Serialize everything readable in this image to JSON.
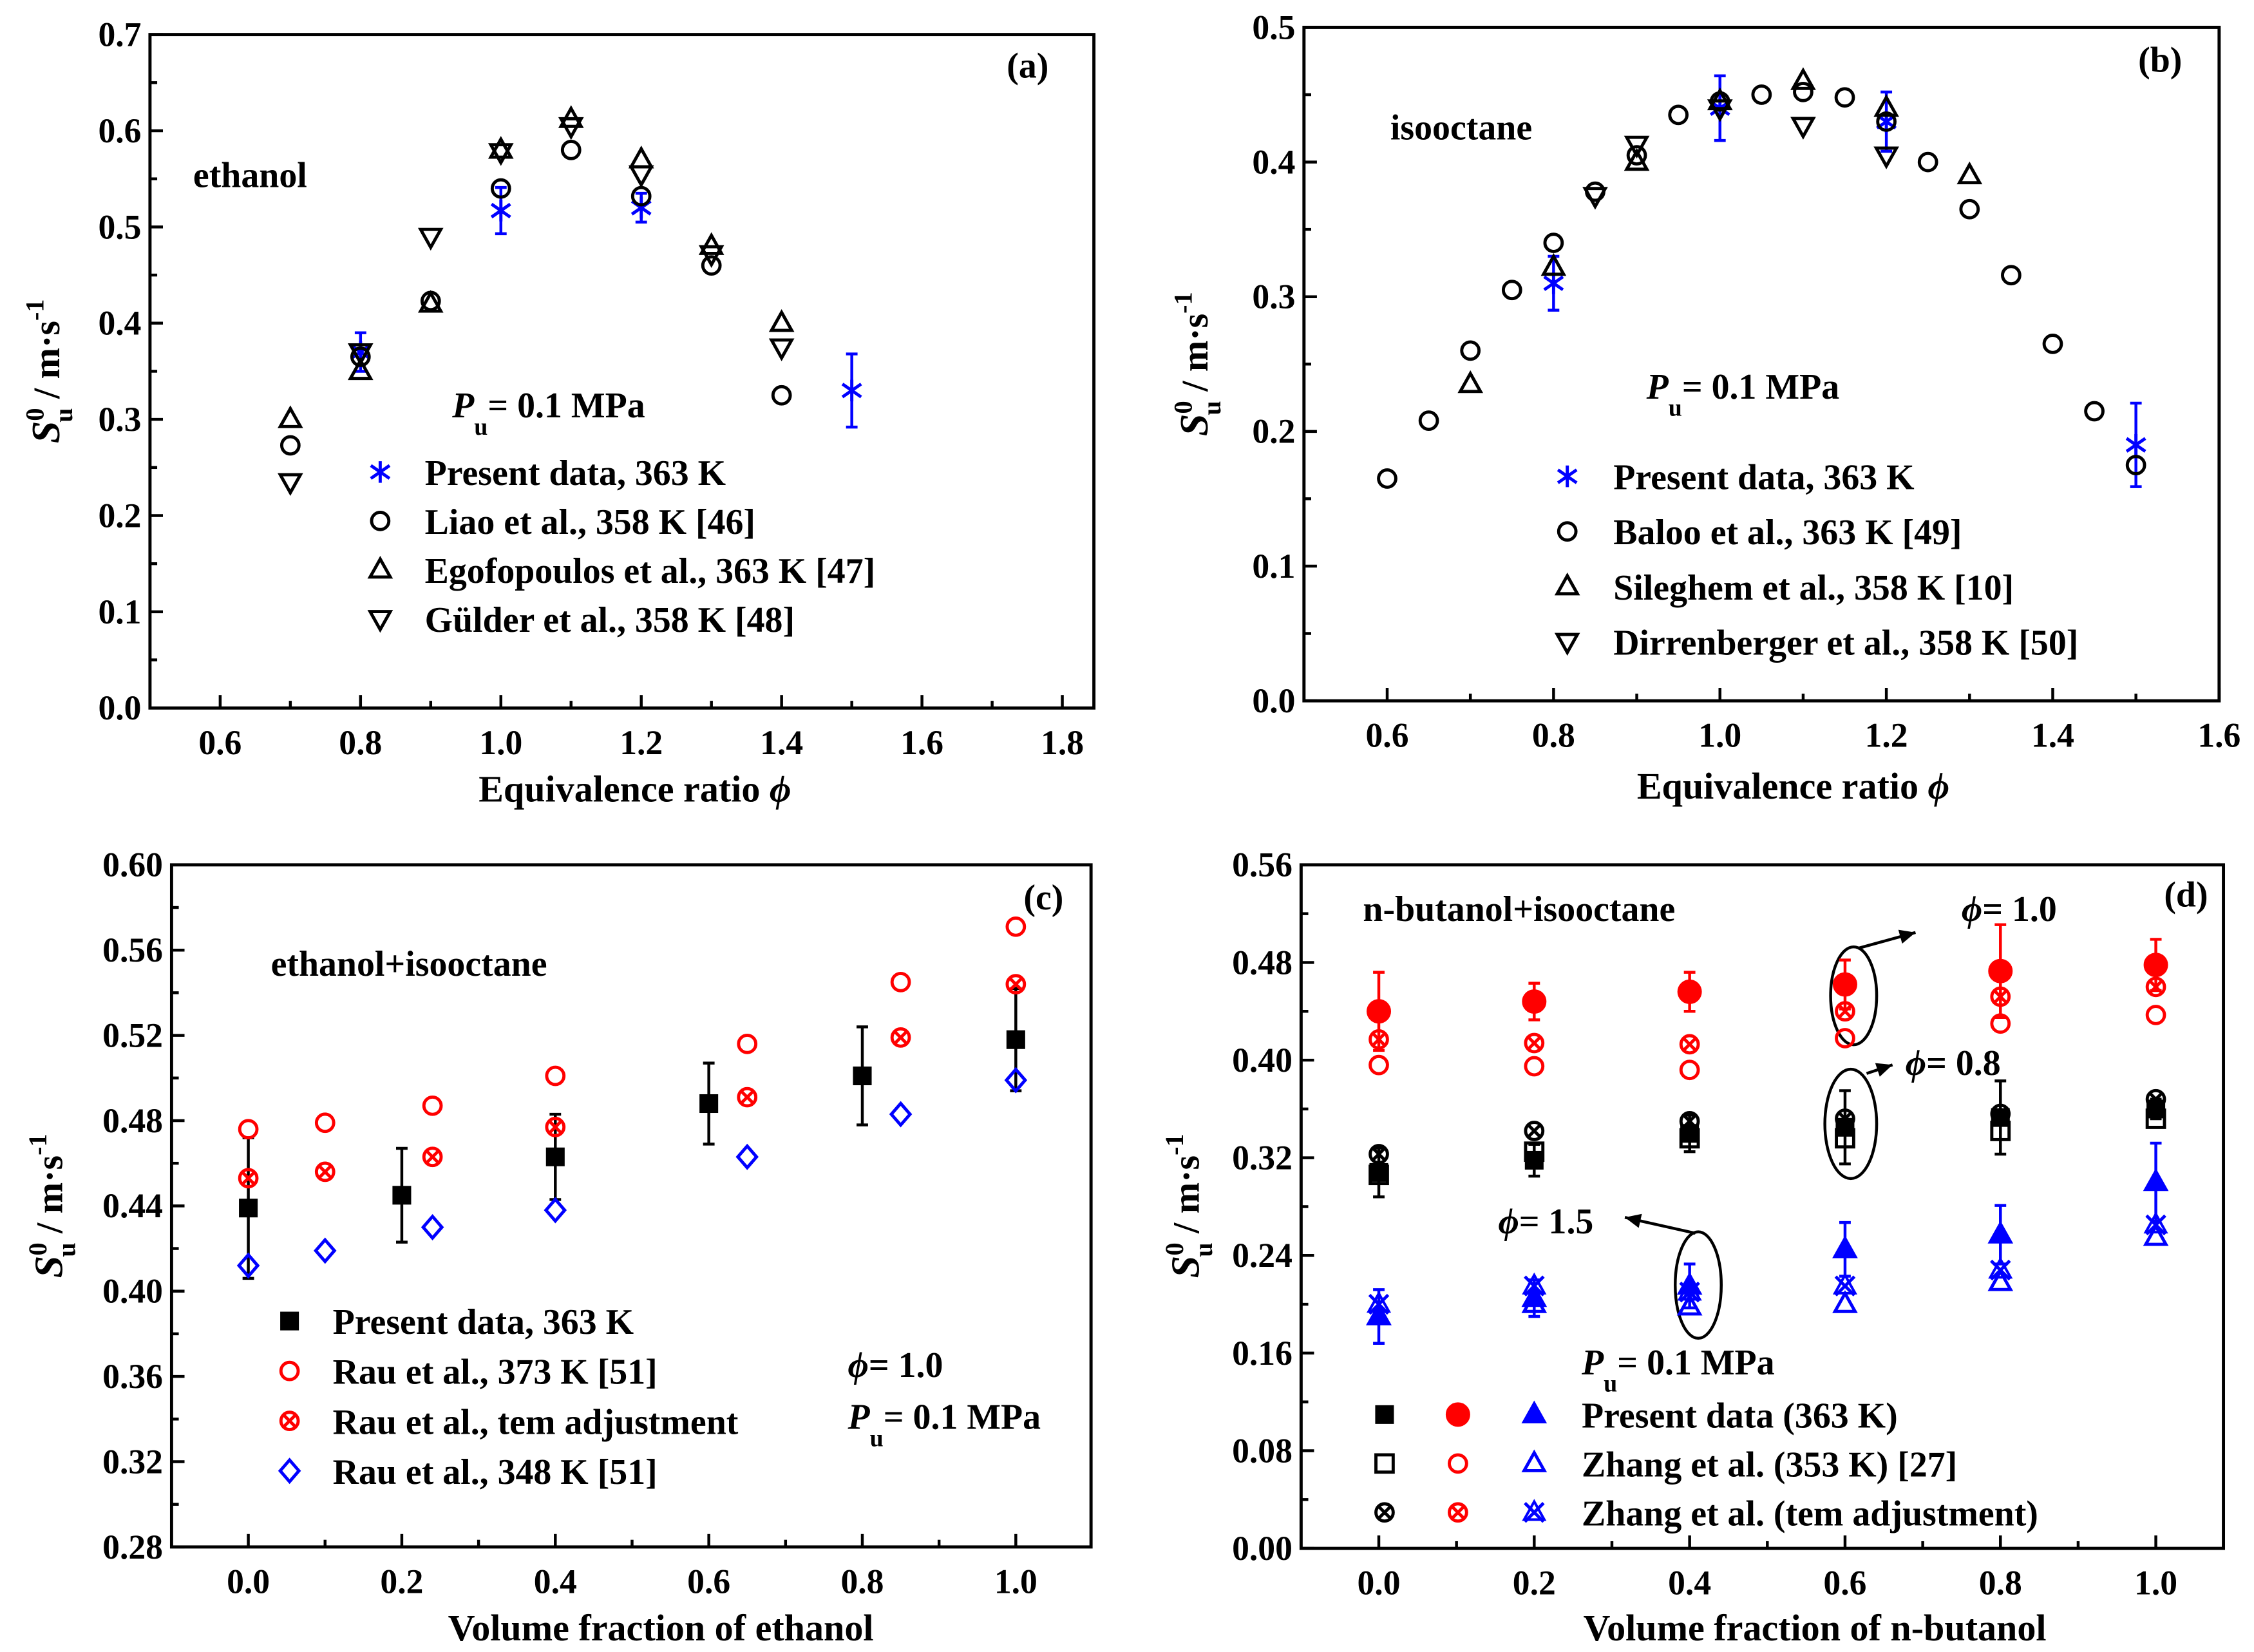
{
  "colors": {
    "blue": "#0000ff",
    "red": "#ff0000",
    "black": "#000000"
  },
  "ylabel": {
    "sym": "S",
    "sub": "u",
    "sup": "0",
    "unit": " / m·s",
    "unit_sup": "-1"
  },
  "chart_data": [
    {
      "panel": "(a)",
      "type": "scatter",
      "title": "ethanol",
      "xlabel": "Equivalence ratio ",
      "xlabel_sym": "ϕ",
      "xlim": [
        0.5,
        1.845
      ],
      "ylim": [
        0,
        0.7
      ],
      "xticks": [
        "0.6",
        "0.8",
        "1.0",
        "1.2",
        "1.4",
        "1.6",
        "1.8"
      ],
      "yticks": [
        "0.0",
        "0.1",
        "0.2",
        "0.3",
        "0.4",
        "0.5",
        "0.6",
        "0.7"
      ],
      "pressure": {
        "sym": "P",
        "sub": "u",
        "value": "= 0.1 MPa"
      },
      "series": [
        {
          "name": "Present data, 363 K",
          "marker": "asterisk",
          "color": "#0000ff",
          "x": [
            0.8,
            1.0,
            1.2,
            1.5
          ],
          "y": [
            0.37,
            0.517,
            0.52,
            0.33
          ],
          "err": [
            0.02,
            0.024,
            0.015,
            0.038
          ]
        },
        {
          "name": "Liao et al., 358 K [46]",
          "marker": "circle",
          "color": "#000000",
          "x": [
            0.7,
            0.8,
            0.9,
            1.0,
            1.1,
            1.2,
            1.3,
            1.4
          ],
          "y": [
            0.273,
            0.365,
            0.423,
            0.54,
            0.58,
            0.532,
            0.46,
            0.325
          ]
        },
        {
          "name": "Egofopoulos et al., 363 K [47]",
          "marker": "tri-up",
          "color": "#000000",
          "x": [
            0.7,
            0.8,
            0.9,
            1.0,
            1.1,
            1.2,
            1.3,
            1.4
          ],
          "y": [
            0.3,
            0.35,
            0.42,
            0.58,
            0.612,
            0.57,
            0.48,
            0.4
          ]
        },
        {
          "name": "Gülder et al., 358 K [48]",
          "marker": "tri-down",
          "color": "#000000",
          "x": [
            0.7,
            0.8,
            0.9,
            1.0,
            1.1,
            1.2,
            1.3,
            1.4
          ],
          "y": [
            0.235,
            0.37,
            0.49,
            0.578,
            0.605,
            0.555,
            0.472,
            0.375
          ]
        }
      ]
    },
    {
      "panel": "(b)",
      "type": "scatter",
      "title": "isooctane",
      "xlabel": "Equivalence ratio ",
      "xlabel_sym": "ϕ",
      "xlim": [
        0.5,
        1.6
      ],
      "ylim": [
        0,
        0.5
      ],
      "xticks": [
        "0.6",
        "0.8",
        "1.0",
        "1.2",
        "1.4",
        "1.6"
      ],
      "yticks": [
        "0.0",
        "0.1",
        "0.2",
        "0.3",
        "0.4",
        "0.5"
      ],
      "pressure": {
        "sym": "P",
        "sub": "u",
        "value": "= 0.1 MPa"
      },
      "series": [
        {
          "name": "Present data, 363 K",
          "marker": "asterisk",
          "color": "#0000ff",
          "x": [
            0.8,
            1.0,
            1.2,
            1.5
          ],
          "y": [
            0.31,
            0.44,
            0.43,
            0.19
          ],
          "err": [
            0.02,
            0.024,
            0.022,
            0.031
          ]
        },
        {
          "name": "Baloo et al., 363 K [49]",
          "marker": "circle",
          "color": "#000000",
          "x": [
            0.6,
            0.65,
            0.7,
            0.75,
            0.8,
            0.85,
            0.9,
            0.95,
            1.0,
            1.05,
            1.1,
            1.15,
            1.2,
            1.25,
            1.3,
            1.35,
            1.4,
            1.45,
            1.5
          ],
          "y": [
            0.165,
            0.208,
            0.26,
            0.305,
            0.34,
            0.378,
            0.405,
            0.435,
            0.445,
            0.45,
            0.452,
            0.448,
            0.43,
            0.4,
            0.365,
            0.316,
            0.265,
            0.215,
            0.175
          ]
        },
        {
          "name": "Sileghem et al., 358 K [10]",
          "marker": "tri-up",
          "color": "#000000",
          "x": [
            0.7,
            0.8,
            0.9,
            1.0,
            1.1,
            1.2,
            1.3
          ],
          "y": [
            0.235,
            0.322,
            0.4,
            0.445,
            0.46,
            0.44,
            0.39
          ]
        },
        {
          "name": "Dirrenberger et al., 358 K [50]",
          "marker": "tri-down",
          "color": "#000000",
          "x": [
            0.85,
            0.9,
            1.0,
            1.1,
            1.2
          ],
          "y": [
            0.375,
            0.413,
            0.44,
            0.427,
            0.405
          ]
        }
      ]
    },
    {
      "panel": "(c)",
      "type": "scatter",
      "title": "ethanol+isooctane",
      "xlabel": "Volume fraction of ethanol",
      "xlabel_sym": "",
      "xlim": [
        -0.1,
        1.098
      ],
      "ylim": [
        0.28,
        0.6
      ],
      "xticks": [
        "0.0",
        "0.2",
        "0.4",
        "0.6",
        "0.8",
        "1.0"
      ],
      "yticks": [
        "0.28",
        "0.32",
        "0.36",
        "0.40",
        "0.44",
        "0.48",
        "0.52",
        "0.56",
        "0.60"
      ],
      "phi": {
        "sym": "ϕ",
        "value": "= 1.0"
      },
      "pressure": {
        "sym": "P",
        "sub": "u",
        "value": "= 0.1 MPa"
      },
      "series": [
        {
          "name": "Present data, 363 K",
          "marker": "square-filled",
          "color": "#000000",
          "x": [
            0,
            0.2,
            0.4,
            0.6,
            0.8,
            1.0
          ],
          "y": [
            0.439,
            0.445,
            0.463,
            0.488,
            0.501,
            0.518
          ],
          "err": [
            0.033,
            0.022,
            0.02,
            0.019,
            0.023,
            0.024
          ]
        },
        {
          "name": "Rau et al., 373 K [51]",
          "marker": "circle",
          "color": "#ff0000",
          "x": [
            0,
            0.1,
            0.24,
            0.4,
            0.65,
            0.85,
            1.0
          ],
          "y": [
            0.476,
            0.479,
            0.487,
            0.501,
            0.516,
            0.545,
            0.571
          ]
        },
        {
          "name": "Rau et al., tem adjustment",
          "marker": "circle-x",
          "color": "#ff0000",
          "x": [
            0,
            0.1,
            0.24,
            0.4,
            0.65,
            0.85,
            1.0
          ],
          "y": [
            0.453,
            0.456,
            0.463,
            0.477,
            0.491,
            0.519,
            0.544
          ]
        },
        {
          "name": "Rau et al., 348 K [51]",
          "marker": "diamond",
          "color": "#0000ff",
          "x": [
            0,
            0.1,
            0.24,
            0.4,
            0.65,
            0.85,
            1.0
          ],
          "y": [
            0.412,
            0.419,
            0.43,
            0.438,
            0.463,
            0.483,
            0.499
          ]
        }
      ]
    },
    {
      "panel": "(d)",
      "type": "scatter",
      "title": "n-butanol+isooctane",
      "xlabel": "Volume fraction of n-butanol",
      "xlabel_sym": "",
      "xlim": [
        -0.1,
        1.087
      ],
      "ylim": [
        0,
        0.56
      ],
      "xticks": [
        "0.0",
        "0.2",
        "0.4",
        "0.6",
        "0.8",
        "1.0"
      ],
      "yticks": [
        "0.00",
        "0.08",
        "0.16",
        "0.24",
        "0.32",
        "0.40",
        "0.48",
        "0.56"
      ],
      "pressure": {
        "sym": "P",
        "sub": "u",
        "value": "= 0.1 MPa"
      },
      "annotations": [
        {
          "sym": "ϕ",
          "value": "= 1.0"
        },
        {
          "sym": "ϕ",
          "value": "= 0.8"
        },
        {
          "sym": "ϕ",
          "value": "= 1.5"
        }
      ],
      "legend": [
        "Present data (363 K)",
        "Zhang et al. (353 K) [27]",
        "Zhang et al. (tem adjustment)"
      ],
      "series": [
        {
          "name": "Present data (363 K), ϕ=0.8",
          "legend_row": 0,
          "marker": "square-filled",
          "color": "#000000",
          "x": [
            0,
            0.2,
            0.4,
            0.6,
            0.8,
            1.0
          ],
          "y": [
            0.308,
            0.318,
            0.34,
            0.345,
            0.353,
            0.36
          ],
          "err": [
            0.02,
            0.013,
            0.015,
            0.03,
            0.03,
            0.008
          ]
        },
        {
          "name": "Zhang et al. (353 K) [27], ϕ=0.8",
          "legend_row": 1,
          "marker": "square",
          "color": "#000000",
          "x": [
            0,
            0.2,
            0.4,
            0.6,
            0.8,
            1.0
          ],
          "y": [
            0.306,
            0.325,
            0.336,
            0.336,
            0.342,
            0.352
          ]
        },
        {
          "name": "Zhang et al. (tem adjustment), ϕ=0.8",
          "legend_row": 2,
          "marker": "circle-x",
          "color": "#000000",
          "x": [
            0,
            0.2,
            0.4,
            0.6,
            0.8,
            1.0
          ],
          "y": [
            0.323,
            0.342,
            0.35,
            0.352,
            0.356,
            0.368
          ]
        },
        {
          "name": "Present data (363 K), ϕ=1.0",
          "legend_row": 0,
          "marker": "circle-filled",
          "color": "#ff0000",
          "x": [
            0,
            0.2,
            0.4,
            0.6,
            0.8,
            1.0
          ],
          "y": [
            0.44,
            0.448,
            0.456,
            0.462,
            0.473,
            0.478
          ],
          "err": [
            0.032,
            0.015,
            0.016,
            0.02,
            0.038,
            0.021
          ]
        },
        {
          "name": "Zhang et al. (353 K) [27], ϕ=1.0",
          "legend_row": 1,
          "marker": "circle",
          "color": "#ff0000",
          "x": [
            0,
            0.2,
            0.4,
            0.6,
            0.8,
            1.0
          ],
          "y": [
            0.396,
            0.395,
            0.392,
            0.418,
            0.43,
            0.437
          ]
        },
        {
          "name": "Zhang et al. (tem adjustment), ϕ=1.0",
          "legend_row": 2,
          "marker": "circle-x",
          "color": "#ff0000",
          "x": [
            0,
            0.2,
            0.4,
            0.6,
            0.8,
            1.0
          ],
          "y": [
            0.417,
            0.414,
            0.413,
            0.44,
            0.452,
            0.46
          ]
        },
        {
          "name": "Present data (363 K), ϕ=1.5",
          "legend_row": 0,
          "marker": "tri-filled",
          "color": "#0000ff",
          "x": [
            0,
            0.2,
            0.4,
            0.6,
            0.8,
            1.0
          ],
          "y": [
            0.19,
            0.205,
            0.215,
            0.245,
            0.257,
            0.3
          ],
          "err": [
            0.022,
            0.015,
            0.018,
            0.022,
            0.024,
            0.032
          ]
        },
        {
          "name": "Zhang et al. (353 K) [27], ϕ=1.5",
          "legend_row": 1,
          "marker": "tri-up",
          "color": "#0000ff",
          "x": [
            0,
            0.2,
            0.4,
            0.6,
            0.8,
            1.0
          ],
          "y": [
            0.19,
            0.2,
            0.198,
            0.2,
            0.218,
            0.255
          ]
        },
        {
          "name": "Zhang et al. (tem adjustment), ϕ=1.5",
          "legend_row": 2,
          "marker": "x-tri",
          "color": "#0000ff",
          "x": [
            0,
            0.2,
            0.4,
            0.6,
            0.8,
            1.0
          ],
          "y": [
            0.2,
            0.215,
            0.21,
            0.215,
            0.228,
            0.265
          ]
        }
      ]
    }
  ]
}
